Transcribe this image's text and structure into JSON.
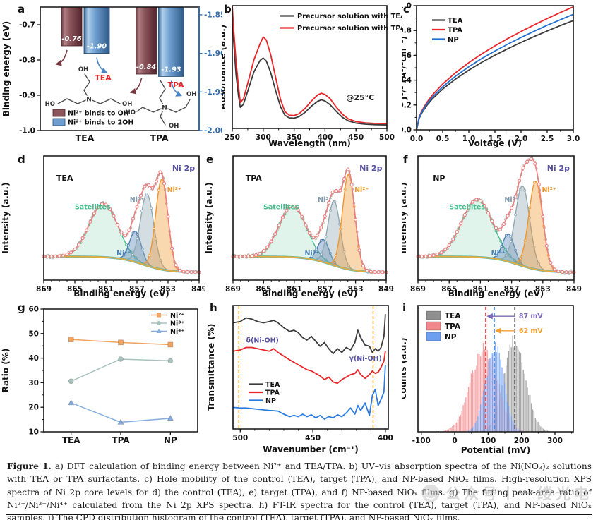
{
  "caption": {
    "label": "Figure 1.",
    "body": " a) DFT calculation of binding energy between Ni²⁺ and TEA/TPA. b) UV–vis absorption spectra of the Ni(NO₃)₂ solutions with TEA or TPA surfactants. c) Hole mobility of the control (TEA), target (TPA), and NP-based NiOₓ films. High-resolution XPS spectra of Ni 2p core levels for d) the control (TEA), e) target (TPA), and f) NP-based NiOₓ films. g) The fitting peak-area ratio of Ni²⁺/Ni³⁺/Ni⁴⁺ calculated from the Ni 2p XPS spectra. h) FT-IR spectra for the control (TEA), target (TPA), and NP-based NiOₓ samples. i) The CPD distribution histogram of the control (TEA), target (TPA), and NP-based NiOₓ films."
  },
  "watermark": {
    "icon": "wechat-icon",
    "text": "公众号丨一缕光电"
  },
  "chart_data": [
    {
      "id": "a",
      "panel_label": "a",
      "type": "bar",
      "ylabel": "Binding energy (eV)",
      "left_range": [
        -0.65,
        -1.0
      ],
      "right_range": [
        -1.84,
        -2.0
      ],
      "left_ticks": [
        [
          -0.7,
          "-0.7"
        ],
        [
          -0.8,
          "-0.8"
        ],
        [
          -0.9,
          "-0.9"
        ],
        [
          -1.0,
          "-1.0"
        ]
      ],
      "right_ticks": [
        [
          -1.85,
          "-1.85"
        ],
        [
          -1.9,
          "-1.90"
        ],
        [
          -1.95,
          "-1.95"
        ],
        [
          -2.0,
          "-2.00"
        ]
      ],
      "right_axis_color": "#2f6bb0",
      "categories": [
        "TEA",
        "TPA"
      ],
      "series": [
        {
          "name": "Ni²⁺ binds to OH",
          "axis": "left",
          "values": [
            -0.76,
            -0.84
          ],
          "value_labels": [
            "-0.76",
            "-0.84"
          ],
          "color": "#8c555c",
          "edge": "#46222a"
        },
        {
          "name": "Ni²⁺ binds to 2OH",
          "axis": "right",
          "values": [
            -1.9,
            -1.93
          ],
          "value_labels": [
            "-1.90",
            "-1.93"
          ],
          "color": "#6d9ecf",
          "edge": "#2a4d75"
        }
      ],
      "molecules": [
        {
          "name": "TEA",
          "name_color": "#e8262a",
          "atom_labels": {
            "top": "OH",
            "left": "HO",
            "right": "OH",
            "center": "N"
          }
        },
        {
          "name": "TPA",
          "name_color": "#e8262a",
          "atom_labels": {
            "left": "HO",
            "right": "OH",
            "bottom": "OH",
            "center": "N"
          }
        }
      ]
    },
    {
      "id": "b",
      "panel_label": "b",
      "type": "line",
      "xlabel": "Wavelength (nm)",
      "ylabel": "Absorbance (a.u.)",
      "xlim": [
        250,
        500
      ],
      "ylim": [
        0,
        1.02
      ],
      "xticks": [
        [
          250,
          "250"
        ],
        [
          300,
          "300"
        ],
        [
          350,
          "350"
        ],
        [
          400,
          "400"
        ],
        [
          450,
          "450"
        ],
        [
          500,
          "500"
        ]
      ],
      "annotation": {
        "text": "@25°C",
        "x": 457,
        "yf": 0.23,
        "color": "#222"
      },
      "x": [
        250,
        252,
        256,
        260,
        263,
        268,
        275,
        285,
        295,
        300,
        305,
        312,
        320,
        328,
        335,
        342,
        350,
        358,
        368,
        378,
        388,
        394,
        400,
        408,
        418,
        428,
        438,
        450,
        465,
        480,
        500
      ],
      "series": [
        {
          "name": "Precursor solution with TEA",
          "color": "#3a3a3a",
          "y": [
            0.97,
            0.74,
            0.45,
            0.27,
            0.175,
            0.2,
            0.31,
            0.47,
            0.565,
            0.585,
            0.56,
            0.465,
            0.315,
            0.18,
            0.11,
            0.088,
            0.085,
            0.098,
            0.135,
            0.185,
            0.225,
            0.238,
            0.228,
            0.198,
            0.142,
            0.092,
            0.062,
            0.044,
            0.035,
            0.031,
            0.029
          ]
        },
        {
          "name": "Precursor solution with TPA",
          "color": "#e8262a",
          "y": [
            1.02,
            0.84,
            0.56,
            0.35,
            0.215,
            0.245,
            0.375,
            0.57,
            0.705,
            0.76,
            0.735,
            0.615,
            0.425,
            0.24,
            0.14,
            0.11,
            0.107,
            0.122,
            0.168,
            0.228,
            0.278,
            0.292,
            0.282,
            0.248,
            0.178,
            0.118,
            0.078,
            0.057,
            0.046,
            0.042,
            0.04
          ]
        }
      ]
    },
    {
      "id": "c",
      "panel_label": "c",
      "type": "line",
      "xlabel": "Voltage (V)",
      "ylabel": "J¹/² (A¹/²cm⁻¹)",
      "xlim": [
        0,
        3
      ],
      "ylim": [
        0,
        1
      ],
      "xticks": [
        [
          0,
          "0.0"
        ],
        [
          0.5,
          "0.5"
        ],
        [
          1,
          "1.0"
        ],
        [
          1.5,
          "1.5"
        ],
        [
          2,
          "2.0"
        ],
        [
          2.5,
          "2.5"
        ],
        [
          3,
          "3.0"
        ]
      ],
      "yticks": [
        [
          0,
          "0.0"
        ],
        [
          0.2,
          "0.2"
        ],
        [
          0.4,
          "0.4"
        ],
        [
          0.6,
          "0.6"
        ],
        [
          0.8,
          "0.8"
        ],
        [
          1,
          "1.0"
        ]
      ],
      "x": [
        0,
        0.05,
        0.1,
        0.2,
        0.3,
        0.5,
        0.75,
        1.0,
        1.25,
        1.5,
        1.75,
        2.0,
        2.25,
        2.5,
        2.75,
        3.0
      ],
      "series": [
        {
          "name": "TEA",
          "color": "#3a3a3a",
          "y": [
            0,
            0.092,
            0.135,
            0.198,
            0.248,
            0.328,
            0.41,
            0.481,
            0.544,
            0.601,
            0.654,
            0.704,
            0.751,
            0.796,
            0.839,
            0.88
          ]
        },
        {
          "name": "TPA",
          "color": "#e8262a",
          "y": [
            0,
            0.104,
            0.152,
            0.223,
            0.279,
            0.369,
            0.461,
            0.541,
            0.612,
            0.676,
            0.736,
            0.792,
            0.845,
            0.896,
            0.944,
            0.99
          ]
        },
        {
          "name": "NP",
          "color": "#1f6fd0",
          "y": [
            0,
            0.098,
            0.143,
            0.209,
            0.262,
            0.347,
            0.433,
            0.508,
            0.575,
            0.635,
            0.691,
            0.744,
            0.794,
            0.842,
            0.886,
            0.93
          ]
        }
      ]
    },
    {
      "id": "d",
      "panel_label": "d",
      "type": "xps",
      "sample": "TEA",
      "region_label": "Ni 2p",
      "region_color": "#5550a0",
      "xlabel": "Binding energy (eV)",
      "ylabel": "Intensity (a.u.)",
      "xlim": [
        869,
        849
      ],
      "ylim": [
        -0.03,
        1.18
      ],
      "xticks": [
        [
          869,
          "869"
        ],
        [
          865,
          "865"
        ],
        [
          861,
          "861"
        ],
        [
          857,
          "857"
        ],
        [
          853,
          "853"
        ],
        [
          849,
          "849"
        ]
      ],
      "background": {
        "hi": 0.2,
        "lo": 0.045,
        "mid": 856.2,
        "k": 1.6
      },
      "envelope_color": "#ee7d7d",
      "raw_color": "#a8a8a8",
      "baseline_colors": [
        "#57b8b0",
        "#e7aa3c"
      ],
      "components": [
        {
          "key": "satellites",
          "label": "Satellites",
          "center": 861.3,
          "sigma": 1.85,
          "amp": 0.52,
          "color": "#43bd8b"
        },
        {
          "key": "ni4",
          "label": "Ni⁴⁺",
          "center": 857.2,
          "sigma": 0.75,
          "amp": 0.3,
          "color": "#4d7fb5"
        },
        {
          "key": "ni3",
          "label": "Ni³⁺",
          "center": 855.7,
          "sigma": 0.85,
          "amp": 0.7,
          "color": "#8fa9b4"
        },
        {
          "key": "ni2",
          "label": "Ni²⁺",
          "center": 853.8,
          "sigma": 0.78,
          "amp": 0.88,
          "color": "#f0962e"
        }
      ]
    },
    {
      "id": "e",
      "panel_label": "e",
      "type": "xps",
      "sample": "TPA",
      "region_label": "Ni 2p",
      "region_color": "#5550a0",
      "xlabel": "Binding energy (eV)",
      "ylabel": "Intensity (a.u.)",
      "xlim": [
        869,
        849
      ],
      "ylim": [
        -0.03,
        1.18
      ],
      "xticks": [
        [
          869,
          "869"
        ],
        [
          865,
          "865"
        ],
        [
          861,
          "861"
        ],
        [
          857,
          "857"
        ],
        [
          853,
          "853"
        ],
        [
          849,
          "849"
        ]
      ],
      "background": {
        "hi": 0.2,
        "lo": 0.045,
        "mid": 856.2,
        "k": 1.6
      },
      "envelope_color": "#ee7d7d",
      "raw_color": "#a8a8a8",
      "baseline_colors": [
        "#57b8b0",
        "#e7aa3c"
      ],
      "components": [
        {
          "key": "satellites",
          "label": "Satellites",
          "center": 861.2,
          "sigma": 1.8,
          "amp": 0.5,
          "color": "#43bd8b"
        },
        {
          "key": "ni4",
          "label": "Ni⁴⁺",
          "center": 857.2,
          "sigma": 0.75,
          "amp": 0.22,
          "color": "#4d7fb5"
        },
        {
          "key": "ni3",
          "label": "Ni³⁺",
          "center": 855.8,
          "sigma": 0.8,
          "amp": 0.63,
          "color": "#8fa9b4"
        },
        {
          "key": "ni2",
          "label": "Ni²⁺",
          "center": 853.9,
          "sigma": 0.8,
          "amp": 0.93,
          "color": "#f0962e"
        }
      ]
    },
    {
      "id": "f",
      "panel_label": "f",
      "type": "xps",
      "sample": "NP",
      "region_label": "Ni 2p",
      "region_color": "#5550a0",
      "xlabel": "Binding energy (eV)",
      "ylabel": "Intensity (a.u.)",
      "xlim": [
        869,
        849
      ],
      "ylim": [
        -0.03,
        1.18
      ],
      "xticks": [
        [
          869,
          "869"
        ],
        [
          865,
          "865"
        ],
        [
          861,
          "861"
        ],
        [
          857,
          "857"
        ],
        [
          853,
          "853"
        ],
        [
          849,
          "849"
        ]
      ],
      "background": {
        "hi": 0.2,
        "lo": 0.045,
        "mid": 856.2,
        "k": 1.6
      },
      "envelope_color": "#ee7d7d",
      "raw_color": "#a8a8a8",
      "baseline_colors": [
        "#57b8b0",
        "#e7aa3c"
      ],
      "components": [
        {
          "key": "satellites",
          "label": "Satellites",
          "center": 861.4,
          "sigma": 2.0,
          "amp": 0.56,
          "color": "#43bd8b"
        },
        {
          "key": "ni4",
          "label": "Ni⁴⁺",
          "center": 857.4,
          "sigma": 0.75,
          "amp": 0.27,
          "color": "#4d7fb5"
        },
        {
          "key": "ni3",
          "label": "Ni³⁺",
          "center": 855.6,
          "sigma": 0.92,
          "amp": 0.78,
          "color": "#8fa9b4"
        },
        {
          "key": "ni2",
          "label": "Ni²⁺",
          "center": 853.9,
          "sigma": 0.88,
          "amp": 0.86,
          "color": "#f0962e"
        }
      ]
    },
    {
      "id": "g",
      "panel_label": "g",
      "type": "line-category",
      "ylabel": "Ratio (%)",
      "categories": [
        "TEA",
        "TPA",
        "NP"
      ],
      "ylim": [
        10,
        60
      ],
      "yticks": [
        [
          10,
          "10"
        ],
        [
          20,
          "20"
        ],
        [
          30,
          "30"
        ],
        [
          40,
          "40"
        ],
        [
          50,
          "50"
        ],
        [
          60,
          "60"
        ]
      ],
      "series": [
        {
          "name": "Ni²⁺",
          "marker": "square",
          "color": "#f2a360",
          "values": [
            47.6,
            46.4,
            45.5
          ]
        },
        {
          "name": "Ni³⁺",
          "marker": "circle",
          "color": "#a8c3bd",
          "values": [
            30.6,
            39.6,
            38.9
          ]
        },
        {
          "name": "Ni⁴⁺",
          "marker": "triangle",
          "color": "#86aede",
          "values": [
            21.8,
            13.9,
            15.5
          ]
        }
      ]
    },
    {
      "id": "h",
      "panel_label": "h",
      "type": "line",
      "xlabel": "Wavenumber (cm⁻¹)",
      "ylabel": "Transmittance (%)",
      "xlim": [
        505,
        398
      ],
      "ylim": [
        0,
        1
      ],
      "xticks": [
        [
          500,
          "500"
        ],
        [
          450,
          "450"
        ],
        [
          400,
          "400"
        ]
      ],
      "dashed_lines": {
        "color": "#f5a623",
        "x": [
          501,
          408.5
        ]
      },
      "annotations": [
        {
          "text": "δ(Ni-OH)",
          "x": 496,
          "yf": 0.7,
          "color": "#5550a0"
        },
        {
          "text": "γ(Ni-OH)",
          "x": 425,
          "yf": 0.555,
          "color": "#5550a0"
        }
      ],
      "x": [
        505,
        500,
        496,
        492,
        488,
        484,
        480,
        477,
        474,
        470,
        466,
        463,
        460,
        457,
        454,
        451,
        448,
        445,
        442,
        439,
        436,
        433,
        430,
        427,
        424,
        421,
        419,
        417,
        414,
        411,
        409,
        407,
        405,
        403,
        401,
        400
      ],
      "series": [
        {
          "name": "TEA",
          "color": "#3c3c3c",
          "y": [
            0.86,
            0.87,
            0.9,
            0.89,
            0.87,
            0.86,
            0.87,
            0.88,
            0.86,
            0.82,
            0.79,
            0.8,
            0.78,
            0.74,
            0.72,
            0.75,
            0.71,
            0.67,
            0.7,
            0.65,
            0.61,
            0.65,
            0.62,
            0.66,
            0.64,
            0.7,
            0.8,
            0.74,
            0.68,
            0.67,
            0.62,
            0.65,
            0.63,
            0.66,
            0.75,
            0.93
          ]
        },
        {
          "name": "TPA",
          "color": "#e8262a",
          "y": [
            0.63,
            0.64,
            0.66,
            0.66,
            0.65,
            0.64,
            0.63,
            0.65,
            0.62,
            0.59,
            0.56,
            0.54,
            0.52,
            0.5,
            0.48,
            0.47,
            0.45,
            0.43,
            0.4,
            0.42,
            0.38,
            0.37,
            0.4,
            0.42,
            0.44,
            0.45,
            0.48,
            0.44,
            0.41,
            0.44,
            0.47,
            0.45,
            0.46,
            0.5,
            0.55,
            0.63
          ]
        },
        {
          "name": "NP",
          "color": "#2b7bde",
          "y": [
            0.175,
            0.17,
            0.17,
            0.165,
            0.16,
            0.155,
            0.15,
            0.148,
            0.145,
            0.12,
            0.1,
            0.11,
            0.1,
            0.12,
            0.1,
            0.115,
            0.09,
            0.11,
            0.08,
            0.1,
            0.09,
            0.115,
            0.1,
            0.13,
            0.17,
            0.12,
            0.19,
            0.15,
            0.21,
            0.11,
            0.27,
            0.32,
            0.19,
            0.24,
            0.3,
            0.52
          ]
        }
      ]
    },
    {
      "id": "i",
      "panel_label": "i",
      "type": "histogram",
      "xlabel": "Potential (mV)",
      "ylabel": "Counts (a.u.)",
      "xlim": [
        -110,
        355
      ],
      "bin_width": 4,
      "xticks": [
        [
          -100,
          "-100"
        ],
        [
          0,
          "0"
        ],
        [
          100,
          "100"
        ],
        [
          200,
          "200"
        ],
        [
          300,
          "300"
        ]
      ],
      "series": [
        {
          "name": "TEA",
          "color": "#8f8f8f",
          "mean": 180,
          "sigma": 33,
          "peak": 0.75
        },
        {
          "name": "TPA",
          "color": "#f2888c",
          "mean": 88,
          "sigma": 40,
          "peak": 0.7
        },
        {
          "name": "NP",
          "color": "#6d9ff0",
          "mean": 120,
          "sigma": 27,
          "peak": 0.715
        }
      ],
      "dashed_lines": [
        {
          "x": 93,
          "color": "#e03030"
        },
        {
          "x": 118,
          "color": "#2f6fd6"
        },
        {
          "x": 180,
          "color": "#555555"
        }
      ],
      "arrows": [
        {
          "from": 180,
          "to": 93,
          "yf": 0.915,
          "color": "#7b68b5",
          "label": "87 mV"
        },
        {
          "from": 180,
          "to": 118,
          "yf": 0.8,
          "color": "#f0a030",
          "label": "62 mV"
        }
      ]
    }
  ]
}
